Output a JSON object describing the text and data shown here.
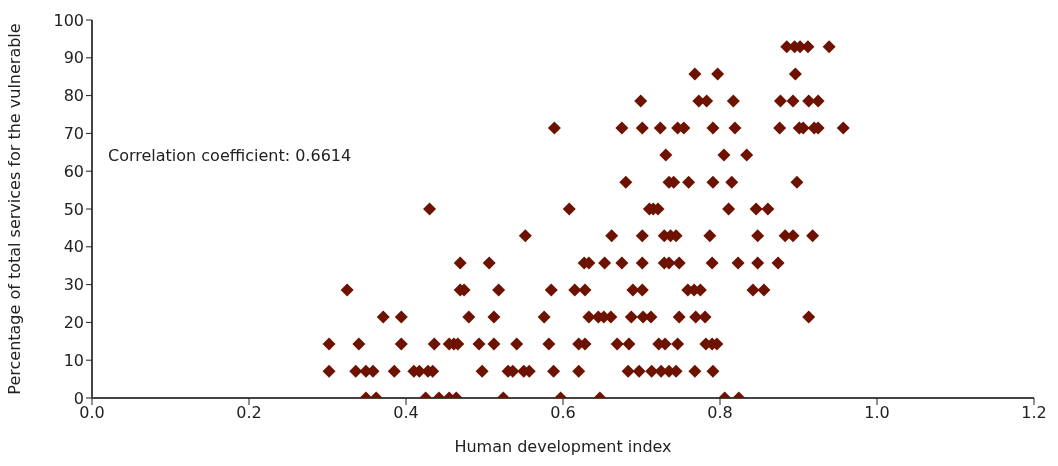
{
  "chart_data": {
    "type": "scatter",
    "xlabel": "Human development index",
    "ylabel": "Percentage of total services for the vulnerable",
    "annotations": [
      "Correlation coefficient: 0.6614"
    ],
    "xlim": [
      0,
      1.2
    ],
    "xticks": [
      {
        "value": 0,
        "label": "0.0"
      },
      0.2,
      0.4,
      0.6,
      0.8,
      {
        "value": 1,
        "label": "1.0"
      },
      1.2
    ],
    "ylim": [
      0,
      100
    ],
    "yticks": [
      0,
      10,
      20,
      30,
      40,
      50,
      60,
      70,
      80,
      90,
      100
    ],
    "marker": "diamond",
    "series": [
      {
        "color": "#6e1200",
        "x": [
          0.349,
          0.362,
          0.425,
          0.442,
          0.455,
          0.464,
          0.524,
          0.597,
          0.647,
          0.806,
          0.824,
          0.302,
          0.336,
          0.349,
          0.358,
          0.385,
          0.41,
          0.417,
          0.428,
          0.434,
          0.497,
          0.53,
          0.536,
          0.55,
          0.557,
          0.588,
          0.62,
          0.683,
          0.697,
          0.713,
          0.725,
          0.735,
          0.744,
          0.768,
          0.791,
          0.302,
          0.34,
          0.394,
          0.436,
          0.455,
          0.461,
          0.466,
          0.493,
          0.512,
          0.541,
          0.582,
          0.62,
          0.628,
          0.669,
          0.684,
          0.722,
          0.73,
          0.746,
          0.782,
          0.79,
          0.796,
          0.371,
          0.394,
          0.48,
          0.512,
          0.576,
          0.633,
          0.645,
          0.652,
          0.661,
          0.687,
          0.702,
          0.712,
          0.748,
          0.769,
          0.781,
          0.913,
          0.325,
          0.469,
          0.474,
          0.518,
          0.585,
          0.615,
          0.628,
          0.689,
          0.701,
          0.759,
          0.767,
          0.775,
          0.842,
          0.856,
          0.469,
          0.506,
          0.627,
          0.633,
          0.653,
          0.675,
          0.701,
          0.729,
          0.735,
          0.748,
          0.79,
          0.823,
          0.848,
          0.874,
          0.552,
          0.662,
          0.701,
          0.729,
          0.737,
          0.744,
          0.787,
          0.848,
          0.883,
          0.893,
          0.918,
          0.43,
          0.608,
          0.71,
          0.715,
          0.721,
          0.811,
          0.846,
          0.861,
          0.68,
          0.735,
          0.741,
          0.76,
          0.791,
          0.815,
          0.898,
          0.731,
          0.805,
          0.834,
          0.589,
          0.675,
          0.701,
          0.724,
          0.746,
          0.754,
          0.791,
          0.819,
          0.876,
          0.901,
          0.906,
          0.92,
          0.925,
          0.957,
          0.699,
          0.773,
          0.783,
          0.817,
          0.877,
          0.893,
          0.913,
          0.925,
          0.768,
          0.797,
          0.896,
          0.885,
          0.895,
          0.902,
          0.912,
          0.939
        ],
        "values": [
          0,
          0,
          0,
          0,
          0,
          0,
          0,
          0,
          0,
          0,
          0,
          7.1,
          7.1,
          7.1,
          7.1,
          7.1,
          7.1,
          7.1,
          7.1,
          7.1,
          7.1,
          7.1,
          7.1,
          7.1,
          7.1,
          7.1,
          7.1,
          7.1,
          7.1,
          7.1,
          7.1,
          7.1,
          7.1,
          7.1,
          7.1,
          14.3,
          14.3,
          14.3,
          14.3,
          14.3,
          14.3,
          14.3,
          14.3,
          14.3,
          14.3,
          14.3,
          14.3,
          14.3,
          14.3,
          14.3,
          14.3,
          14.3,
          14.3,
          14.3,
          14.3,
          14.3,
          21.4,
          21.4,
          21.4,
          21.4,
          21.4,
          21.4,
          21.4,
          21.4,
          21.4,
          21.4,
          21.4,
          21.4,
          21.4,
          21.4,
          21.4,
          21.4,
          28.6,
          28.6,
          28.6,
          28.6,
          28.6,
          28.6,
          28.6,
          28.6,
          28.6,
          28.6,
          28.6,
          28.6,
          28.6,
          28.6,
          35.7,
          35.7,
          35.7,
          35.7,
          35.7,
          35.7,
          35.7,
          35.7,
          35.7,
          35.7,
          35.7,
          35.7,
          35.7,
          35.7,
          42.9,
          42.9,
          42.9,
          42.9,
          42.9,
          42.9,
          42.9,
          42.9,
          42.9,
          42.9,
          42.9,
          50,
          50,
          50,
          50,
          50,
          50,
          50,
          50,
          57.1,
          57.1,
          57.1,
          57.1,
          57.1,
          57.1,
          57.1,
          64.3,
          64.3,
          64.3,
          71.4,
          71.4,
          71.4,
          71.4,
          71.4,
          71.4,
          71.4,
          71.4,
          71.4,
          71.4,
          71.4,
          71.4,
          71.4,
          71.4,
          78.6,
          78.6,
          78.6,
          78.6,
          78.6,
          78.6,
          78.6,
          78.6,
          85.7,
          85.7,
          85.7,
          92.9,
          92.9,
          92.9,
          92.9,
          92.9
        ]
      }
    ]
  }
}
